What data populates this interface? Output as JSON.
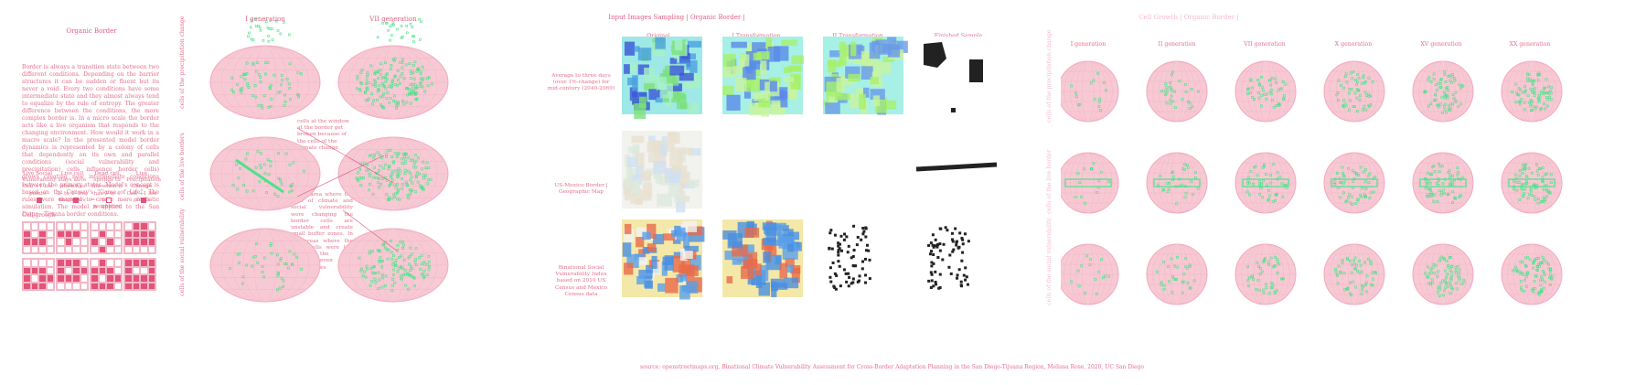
{
  "organic_border": {
    "title": "Organic Border",
    "paragraph": "Border is always a transition state between two different conditions. Depending on the barrier structures it can be sudden or fluent but its never a void. Every two conditions have some intermediate state and they almost always tend to equalize by the rule of entropy. The greater difference between the conditions, the more complex border is. In a micro scale the border acts like a live organism that responds to the changing environment. How would it work in a macro scale? In the presented model border dynamics is represented by a colony of cells that dependently on its own and parallel conditions (social vulnerability and precipitation) cells influence border cells) grows creating new intermediate conditions between the primary states. Model's concept is based on the Conway's \"Game of Life\". The rules were changed to create more realistic simulation. The model is applied to the San Diego - Tijuana border conditions.",
    "rules": [
      "Live Social Vulnerability Cell +1 life points",
      "Live cell stays alive when has 2- to 4- live neighbors",
      "Dead cell springs to life when it has 3 to 4 live neighbors",
      "Live Precipitation Change Cell +1 life points"
    ],
    "rule_symbols": [
      "+",
      "=",
      "v",
      "-"
    ],
    "cell_growth_label": "Cell growth"
  },
  "generations_panel": {
    "col1": "I generation",
    "col2": "VII generation",
    "rows": [
      "cells of the precipitation change",
      "cells of the live borders",
      "cells of the social vulnerability"
    ],
    "annotation1": "cells at the window at the border get broken because of the cells of the climate change",
    "annotation2": "in the area where the cells of climate and social vulnerability were changing the border cells are unstable and create small buffer zones. In the areas where the other cells were low across the cells remain even and create waves"
  },
  "sampling": {
    "title": "Input Images Sampling | Organic Border |",
    "columns": [
      "Original",
      "I Transformation",
      "II Transformation",
      "Finished Sample"
    ],
    "rows": [
      "Average to three days (over 1%-change) for mid-century (2040-2069)",
      "US-Mexico Border | Geographic Map",
      "Binational Social Vulnerability Index based on 2010 US Census and Mexico Census data"
    ],
    "source": "source: openstreetmaps.org, Binational Climate Vulnerability Assessment for Cross-Border Adaptation Planning in the San Diego-Tijuana Region, Melissa Rose, 2020, UC San Diego"
  },
  "cell_growth": {
    "title": "Cell Growth | Organic Border |",
    "columns": [
      "I generation",
      "II generation",
      "VII generation",
      "X generation",
      "XV generation",
      "XX generation"
    ],
    "rows": [
      "cells of the precipitation change",
      "cells of the live border",
      "cells of the social vulnerability"
    ]
  },
  "colors": {
    "accent": "#e46f8c",
    "cell": "#e2547a",
    "green": "#4be38a",
    "globe": "#f7c9d4"
  }
}
